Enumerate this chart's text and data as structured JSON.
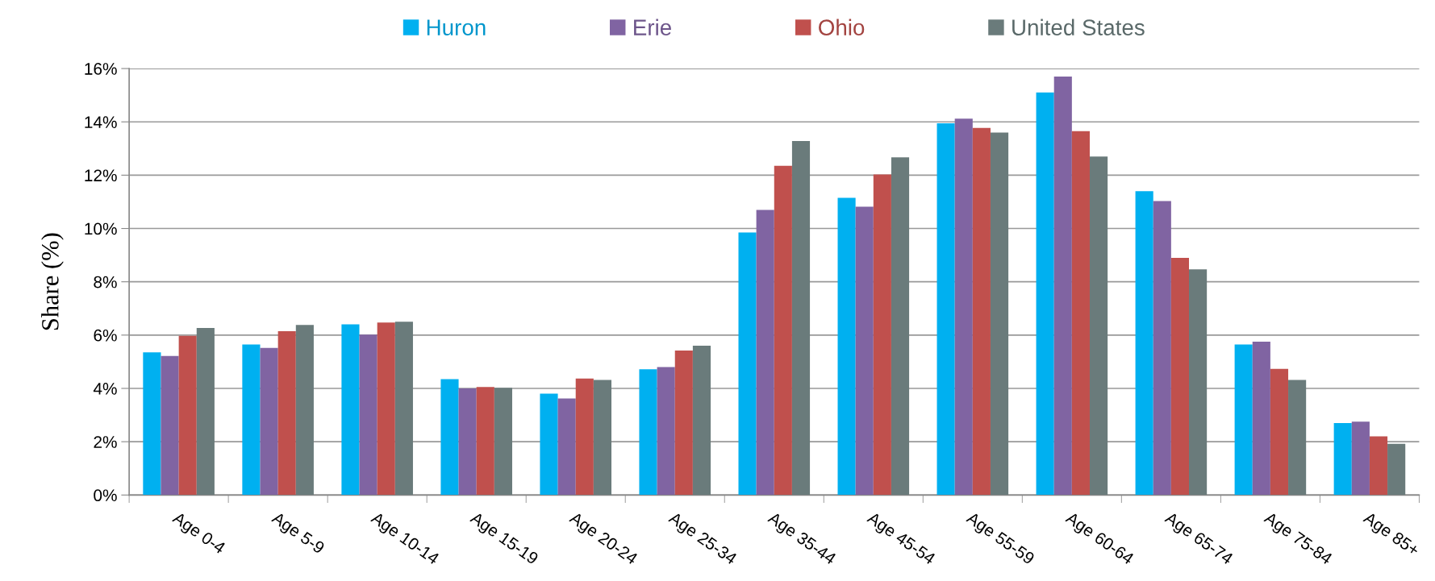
{
  "chart_data": {
    "type": "bar",
    "ylabel": "Share (%)",
    "categories": [
      "Age 0-4",
      "Age 5-9",
      "Age 10-14",
      "Age 15-19",
      "Age 20-24",
      "Age 25-34",
      "Age 35-44",
      "Age 45-54",
      "Age 55-59",
      "Age 60-64",
      "Age 65-74",
      "Age 75-84",
      "Age 85+"
    ],
    "series": [
      {
        "name": "Huron",
        "color": "#00b0f0",
        "values": [
          5.35,
          5.65,
          6.4,
          4.35,
          3.8,
          4.72,
          9.85,
          11.15,
          13.95,
          15.1,
          11.4,
          5.65,
          2.7
        ]
      },
      {
        "name": "Erie",
        "color": "#8064a2",
        "values": [
          5.22,
          5.52,
          6.02,
          4.0,
          3.62,
          4.8,
          10.7,
          10.82,
          14.12,
          15.7,
          11.03,
          5.75,
          2.75
        ]
      },
      {
        "name": "Ohio",
        "color": "#c0504d",
        "values": [
          5.97,
          6.15,
          6.47,
          4.05,
          4.37,
          5.42,
          12.35,
          12.03,
          13.77,
          13.65,
          8.9,
          4.73,
          2.2
        ]
      },
      {
        "name": "United States",
        "color": "#6a7b7b",
        "values": [
          6.27,
          6.38,
          6.5,
          4.02,
          4.32,
          5.6,
          13.28,
          12.67,
          13.6,
          12.7,
          8.47,
          4.32,
          1.92
        ]
      }
    ],
    "ylim": [
      0,
      16
    ],
    "yticks": [
      {
        "value": 0,
        "label": "0%"
      },
      {
        "value": 2,
        "label": "2%"
      },
      {
        "value": 4,
        "label": "4%"
      },
      {
        "value": 6,
        "label": "6%"
      },
      {
        "value": 8,
        "label": "8%"
      },
      {
        "value": 10,
        "label": "10%"
      },
      {
        "value": 12,
        "label": "12%"
      },
      {
        "value": 14,
        "label": "14%"
      },
      {
        "value": 16,
        "label": "16%"
      }
    ],
    "grid": "y",
    "legend": "top"
  }
}
